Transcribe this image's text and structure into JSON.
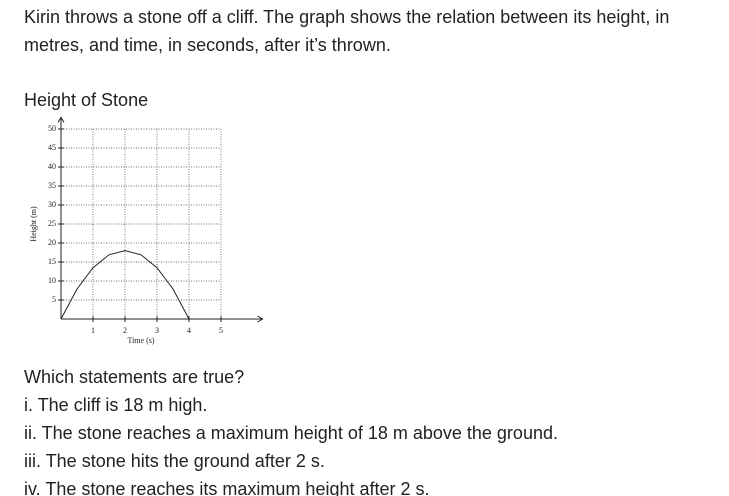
{
  "intro": "Kirin throws a stone off a cliff. The graph shows the relation between its height, in metres, and time, in seconds, after it’s thrown.",
  "chart_data": {
    "type": "line",
    "title": "Height of Stone",
    "x_label": "Time (s)",
    "y_label": "Height (m)",
    "x": [
      0,
      0.5,
      1,
      1.5,
      2,
      2.5,
      3,
      3.5,
      4
    ],
    "values": [
      0,
      7.9,
      13.5,
      16.9,
      18,
      16.9,
      13.5,
      7.9,
      0
    ],
    "color": "#222222",
    "xlim": [
      0,
      6.3
    ],
    "ylim": [
      0,
      52
    ],
    "xticks": [
      1,
      2,
      3,
      4,
      5
    ],
    "yticks": [
      5,
      10,
      15,
      20,
      25,
      30,
      35,
      40,
      45,
      50
    ],
    "grid": true
  },
  "question": "Which statements are true?",
  "statements": [
    "i. The cliff is 18 m high.",
    "ii. The stone reaches a maximum height of 18 m above the ground.",
    "iii. The stone hits the ground after 2 s.",
    "iv. The stone reaches its maximum height after 2 s."
  ]
}
